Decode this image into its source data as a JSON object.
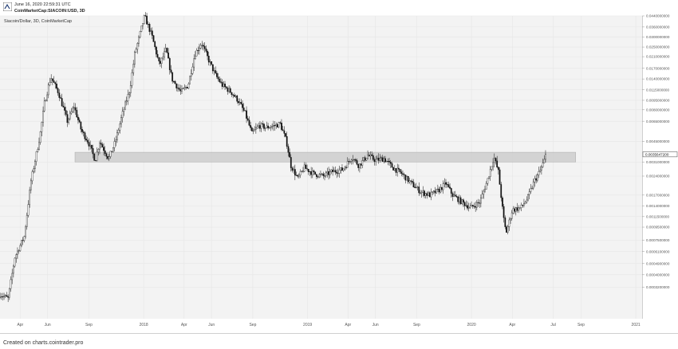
{
  "header": {
    "date_line": "June 16, 2020 22:59:31 UTC",
    "symbol_line": "CoinMarketCap:SIACOIN:USD, 3D",
    "logo_icon": "cointrader-logo-icon"
  },
  "footer": {
    "credit": "Created on charts.cointrader.pro"
  },
  "colors": {
    "plot_background": "#f3f3f3",
    "candles": "#111111",
    "zone": "#cfcfcf",
    "axis_text": "#555555"
  },
  "chart_data": {
    "type": "candlestick",
    "title": "Siacoin/Dollar, 3D, CoinMarketCap",
    "y_scale": "log",
    "ylim": [
      0.00018,
      0.044
    ],
    "y_ticks": [
      "0.0440000000",
      "0.0360000000",
      "0.0300000000",
      "0.0250000000",
      "0.0210000000",
      "0.0170000000",
      "0.0140000000",
      "0.0115000000",
      "0.0095000000",
      "0.0080000000",
      "0.0065000000",
      "0.0045000000",
      "0.0031000000",
      "0.0024000000",
      "0.0017000000",
      "0.0014000000",
      "0.0011500000",
      "0.0009500000",
      "0.0007500000",
      "0.0006100000",
      "0.0004900000",
      "0.0004000000",
      "0.0003200000"
    ],
    "x_ticks": [
      "Apr",
      "Jun",
      "Sep",
      "2018",
      "Apr",
      "Jun",
      "Sep",
      "2019",
      "Apr",
      "Jun",
      "Sep",
      "2020",
      "Apr",
      "Jul",
      "Sep",
      "2021"
    ],
    "x_range": [
      "2017-02-15",
      "2021-01-15"
    ],
    "last_price": "0.0035647200",
    "grid": true,
    "legend": "top-left",
    "zone": {
      "low": 0.0031,
      "high": 0.0037,
      "start": "2017-08-01",
      "end": "2020-08-20"
    },
    "path": [
      [
        "2017-02-15",
        0.00028
      ],
      [
        "2017-03-05",
        0.00026
      ],
      [
        "2017-03-20",
        0.00055
      ],
      [
        "2017-04-10",
        0.0008
      ],
      [
        "2017-04-25",
        0.0022
      ],
      [
        "2017-05-15",
        0.005
      ],
      [
        "2017-05-25",
        0.009
      ],
      [
        "2017-06-08",
        0.0145
      ],
      [
        "2017-06-25",
        0.011
      ],
      [
        "2017-07-15",
        0.0065
      ],
      [
        "2017-07-30",
        0.0085
      ],
      [
        "2017-08-15",
        0.0055
      ],
      [
        "2017-08-30",
        0.0045
      ],
      [
        "2017-09-15",
        0.0032
      ],
      [
        "2017-09-25",
        0.0045
      ],
      [
        "2017-10-15",
        0.0033
      ],
      [
        "2017-10-30",
        0.0045
      ],
      [
        "2017-11-15",
        0.0075
      ],
      [
        "2017-12-01",
        0.0115
      ],
      [
        "2017-12-12",
        0.022
      ],
      [
        "2017-12-22",
        0.03
      ],
      [
        "2018-01-03",
        0.044
      ],
      [
        "2018-01-20",
        0.03
      ],
      [
        "2018-02-05",
        0.018
      ],
      [
        "2018-02-20",
        0.024
      ],
      [
        "2018-03-05",
        0.014
      ],
      [
        "2018-03-25",
        0.011
      ],
      [
        "2018-04-10",
        0.0125
      ],
      [
        "2018-04-25",
        0.022
      ],
      [
        "2018-05-10",
        0.027
      ],
      [
        "2018-05-25",
        0.02
      ],
      [
        "2018-06-10",
        0.015
      ],
      [
        "2018-06-25",
        0.0125
      ],
      [
        "2018-07-15",
        0.011
      ],
      [
        "2018-07-30",
        0.0095
      ],
      [
        "2018-08-15",
        0.0075
      ],
      [
        "2018-08-30",
        0.0052
      ],
      [
        "2018-09-15",
        0.006
      ],
      [
        "2018-10-01",
        0.0058
      ],
      [
        "2018-10-20",
        0.006
      ],
      [
        "2018-11-01",
        0.0062
      ],
      [
        "2018-11-15",
        0.0045
      ],
      [
        "2018-11-25",
        0.0029
      ],
      [
        "2018-12-10",
        0.0023
      ],
      [
        "2018-12-25",
        0.0028
      ],
      [
        "2019-01-15",
        0.0025
      ],
      [
        "2019-02-05",
        0.0024
      ],
      [
        "2019-02-25",
        0.0026
      ],
      [
        "2019-03-20",
        0.0027
      ],
      [
        "2019-04-10",
        0.0034
      ],
      [
        "2019-04-25",
        0.0029
      ],
      [
        "2019-05-15",
        0.0035
      ],
      [
        "2019-06-01",
        0.0032
      ],
      [
        "2019-06-20",
        0.0033
      ],
      [
        "2019-07-10",
        0.0028
      ],
      [
        "2019-07-30",
        0.0025
      ],
      [
        "2019-08-20",
        0.0021
      ],
      [
        "2019-09-10",
        0.0018
      ],
      [
        "2019-09-30",
        0.0017
      ],
      [
        "2019-10-20",
        0.00185
      ],
      [
        "2019-11-05",
        0.0021
      ],
      [
        "2019-11-20",
        0.0017
      ],
      [
        "2019-12-10",
        0.0015
      ],
      [
        "2019-12-30",
        0.00135
      ],
      [
        "2020-01-20",
        0.0015
      ],
      [
        "2020-02-05",
        0.0022
      ],
      [
        "2020-02-20",
        0.0034
      ],
      [
        "2020-03-01",
        0.0026
      ],
      [
        "2020-03-12",
        0.00115
      ],
      [
        "2020-03-18",
        0.00085
      ],
      [
        "2020-04-01",
        0.0013
      ],
      [
        "2020-04-20",
        0.00135
      ],
      [
        "2020-05-05",
        0.0016
      ],
      [
        "2020-05-20",
        0.0022
      ],
      [
        "2020-06-01",
        0.0026
      ],
      [
        "2020-06-10",
        0.0031
      ],
      [
        "2020-06-16",
        0.00356
      ]
    ]
  }
}
